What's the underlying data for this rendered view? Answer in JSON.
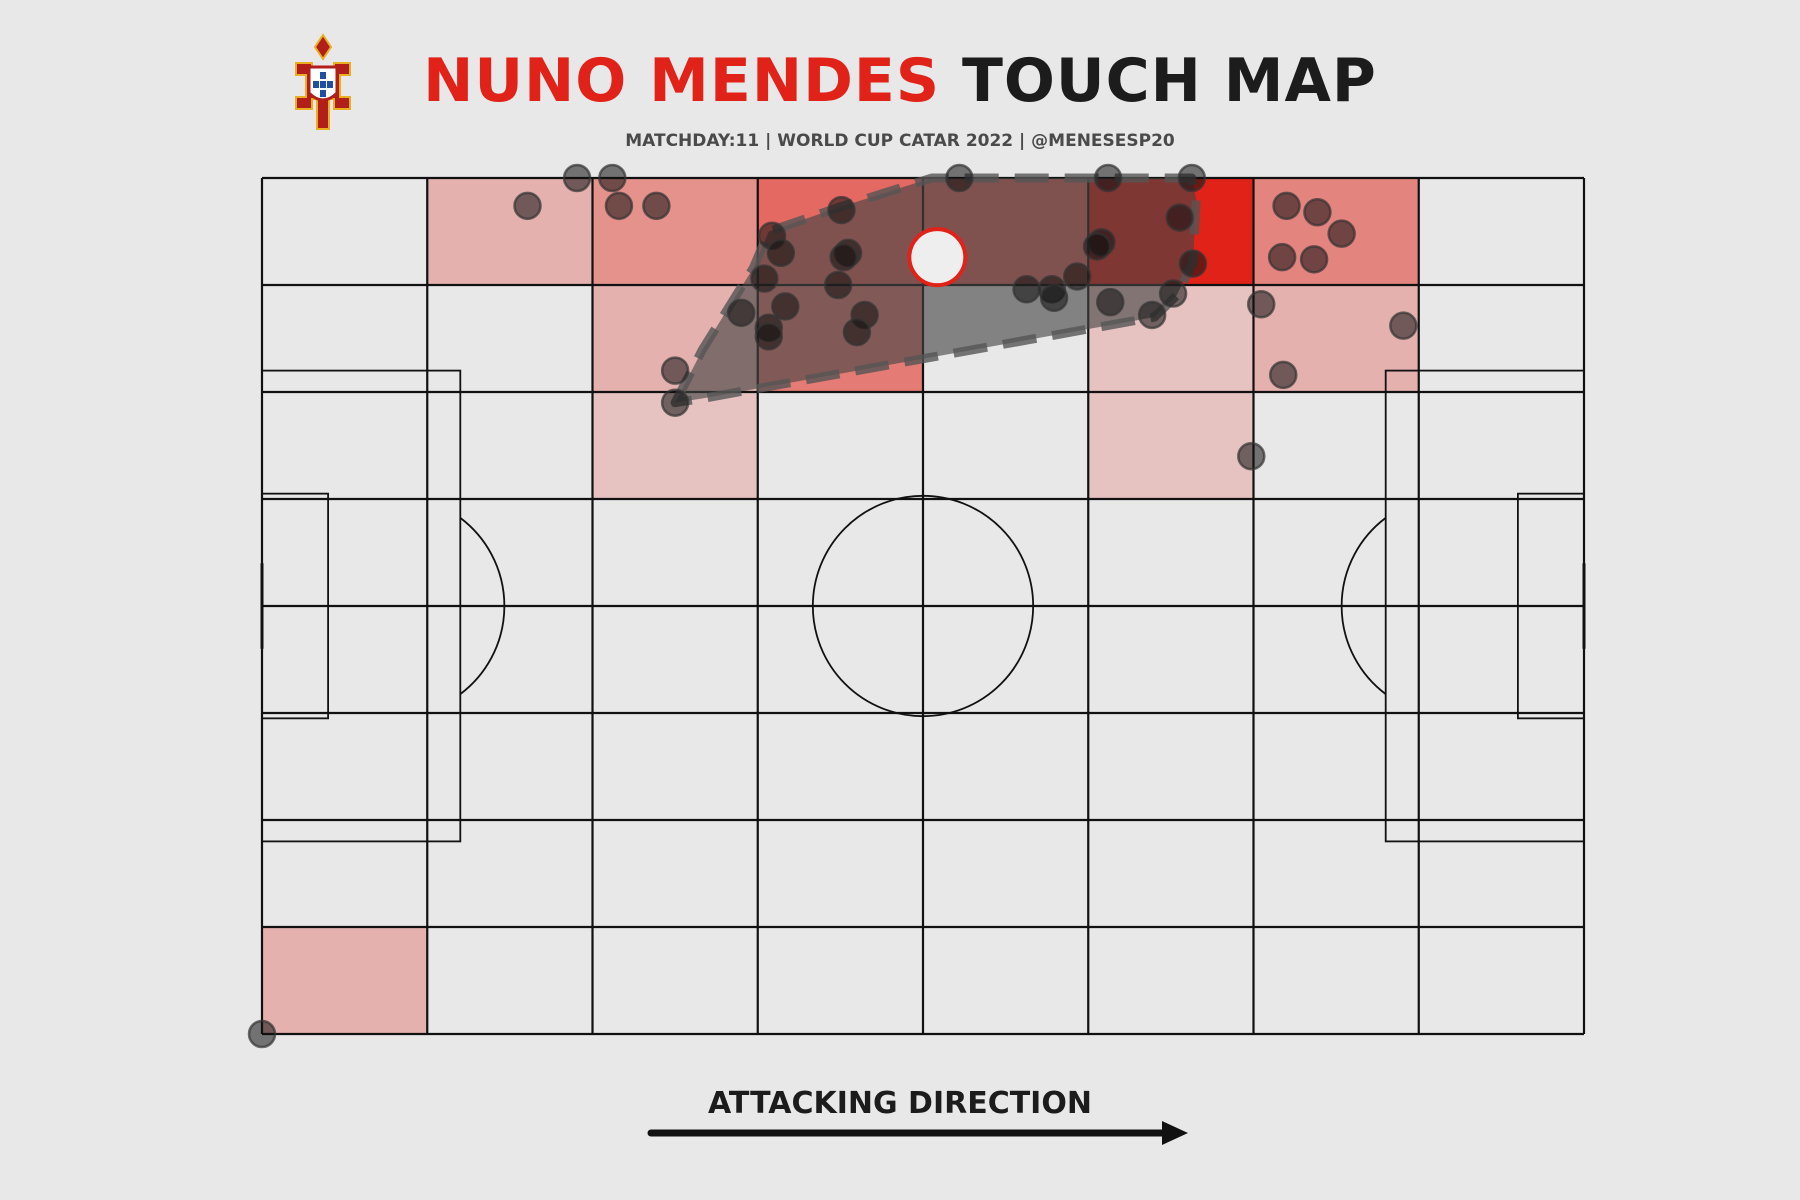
{
  "header": {
    "title_player": "NUNO MENDES",
    "title_rest": "TOUCH MAP",
    "subtitle": "MATCHDAY:11 | WORLD CUP CATAR 2022 | @MENESESP20"
  },
  "footer": {
    "direction_label": "ATTACKING DIRECTION"
  },
  "crest": {
    "icon": "portugal-fpf-crest-icon"
  },
  "colors": {
    "accent": "#e02218",
    "background": "#e8e8e8",
    "ink": "#111111",
    "hull": "#444444"
  },
  "chart_data": {
    "type": "scatter",
    "pitch": {
      "length": 120,
      "width": 80,
      "grid_cols": 8,
      "grid_rows": 8
    },
    "heatmap_cells": [
      {
        "col": 1,
        "row": 0,
        "intensity": 0.22
      },
      {
        "col": 2,
        "row": 0,
        "intensity": 0.45
      },
      {
        "col": 3,
        "row": 0,
        "intensity": 0.75
      },
      {
        "col": 4,
        "row": 0,
        "intensity": 0.75
      },
      {
        "col": 5,
        "row": 0,
        "intensity": 1.0
      },
      {
        "col": 6,
        "row": 0,
        "intensity": 0.55
      },
      {
        "col": 2,
        "row": 1,
        "intensity": 0.22
      },
      {
        "col": 3,
        "row": 1,
        "intensity": 0.62
      },
      {
        "col": 5,
        "row": 1,
        "intensity": 0.1
      },
      {
        "col": 6,
        "row": 1,
        "intensity": 0.22
      },
      {
        "col": 2,
        "row": 2,
        "intensity": 0.1
      },
      {
        "col": 5,
        "row": 2,
        "intensity": 0.1
      },
      {
        "col": 0,
        "row": 7,
        "intensity": 0.22
      }
    ],
    "touches": [
      [
        24.1,
        77.4
      ],
      [
        28.6,
        80.0
      ],
      [
        31.8,
        80.0
      ],
      [
        32.4,
        77.4
      ],
      [
        35.8,
        77.4
      ],
      [
        46.3,
        74.6
      ],
      [
        47.1,
        73.0
      ],
      [
        45.6,
        70.6
      ],
      [
        52.6,
        77.0
      ],
      [
        53.2,
        73.0
      ],
      [
        52.8,
        72.6
      ],
      [
        52.3,
        70.0
      ],
      [
        47.5,
        68.0
      ],
      [
        54.7,
        67.2
      ],
      [
        54.0,
        65.6
      ],
      [
        43.5,
        67.4
      ],
      [
        46.0,
        66.0
      ],
      [
        46.0,
        65.2
      ],
      [
        37.5,
        62.0
      ],
      [
        37.5,
        59.0
      ],
      [
        63.3,
        80.0
      ],
      [
        76.8,
        80.0
      ],
      [
        84.4,
        80.0
      ],
      [
        83.3,
        76.3
      ],
      [
        76.2,
        74.0
      ],
      [
        75.8,
        73.6
      ],
      [
        84.5,
        72.0
      ],
      [
        74.0,
        70.8
      ],
      [
        69.4,
        69.6
      ],
      [
        71.7,
        69.6
      ],
      [
        71.9,
        68.8
      ],
      [
        77.0,
        68.4
      ],
      [
        82.7,
        69.2
      ],
      [
        80.8,
        67.2
      ],
      [
        90.7,
        68.2
      ],
      [
        93.0,
        77.4
      ],
      [
        95.8,
        76.8
      ],
      [
        98.0,
        74.8
      ],
      [
        92.6,
        72.6
      ],
      [
        95.5,
        72.4
      ],
      [
        103.6,
        66.2
      ],
      [
        92.7,
        61.6
      ],
      [
        89.8,
        54.0
      ],
      [
        0.0,
        0.0
      ]
    ],
    "hull": [
      [
        37.5,
        59.0
      ],
      [
        40.0,
        64.0
      ],
      [
        44.6,
        71.6
      ],
      [
        46.0,
        75.0
      ],
      [
        52.2,
        77.2
      ],
      [
        60.8,
        80.0
      ],
      [
        84.4,
        80.0
      ],
      [
        84.8,
        78.0
      ],
      [
        84.5,
        72.0
      ],
      [
        83.0,
        69.0
      ],
      [
        81.0,
        67.0
      ],
      [
        40.0,
        59.4
      ]
    ],
    "average_position": [
      61.3,
      72.6
    ],
    "xlabel": "ATTACKING DIRECTION"
  }
}
